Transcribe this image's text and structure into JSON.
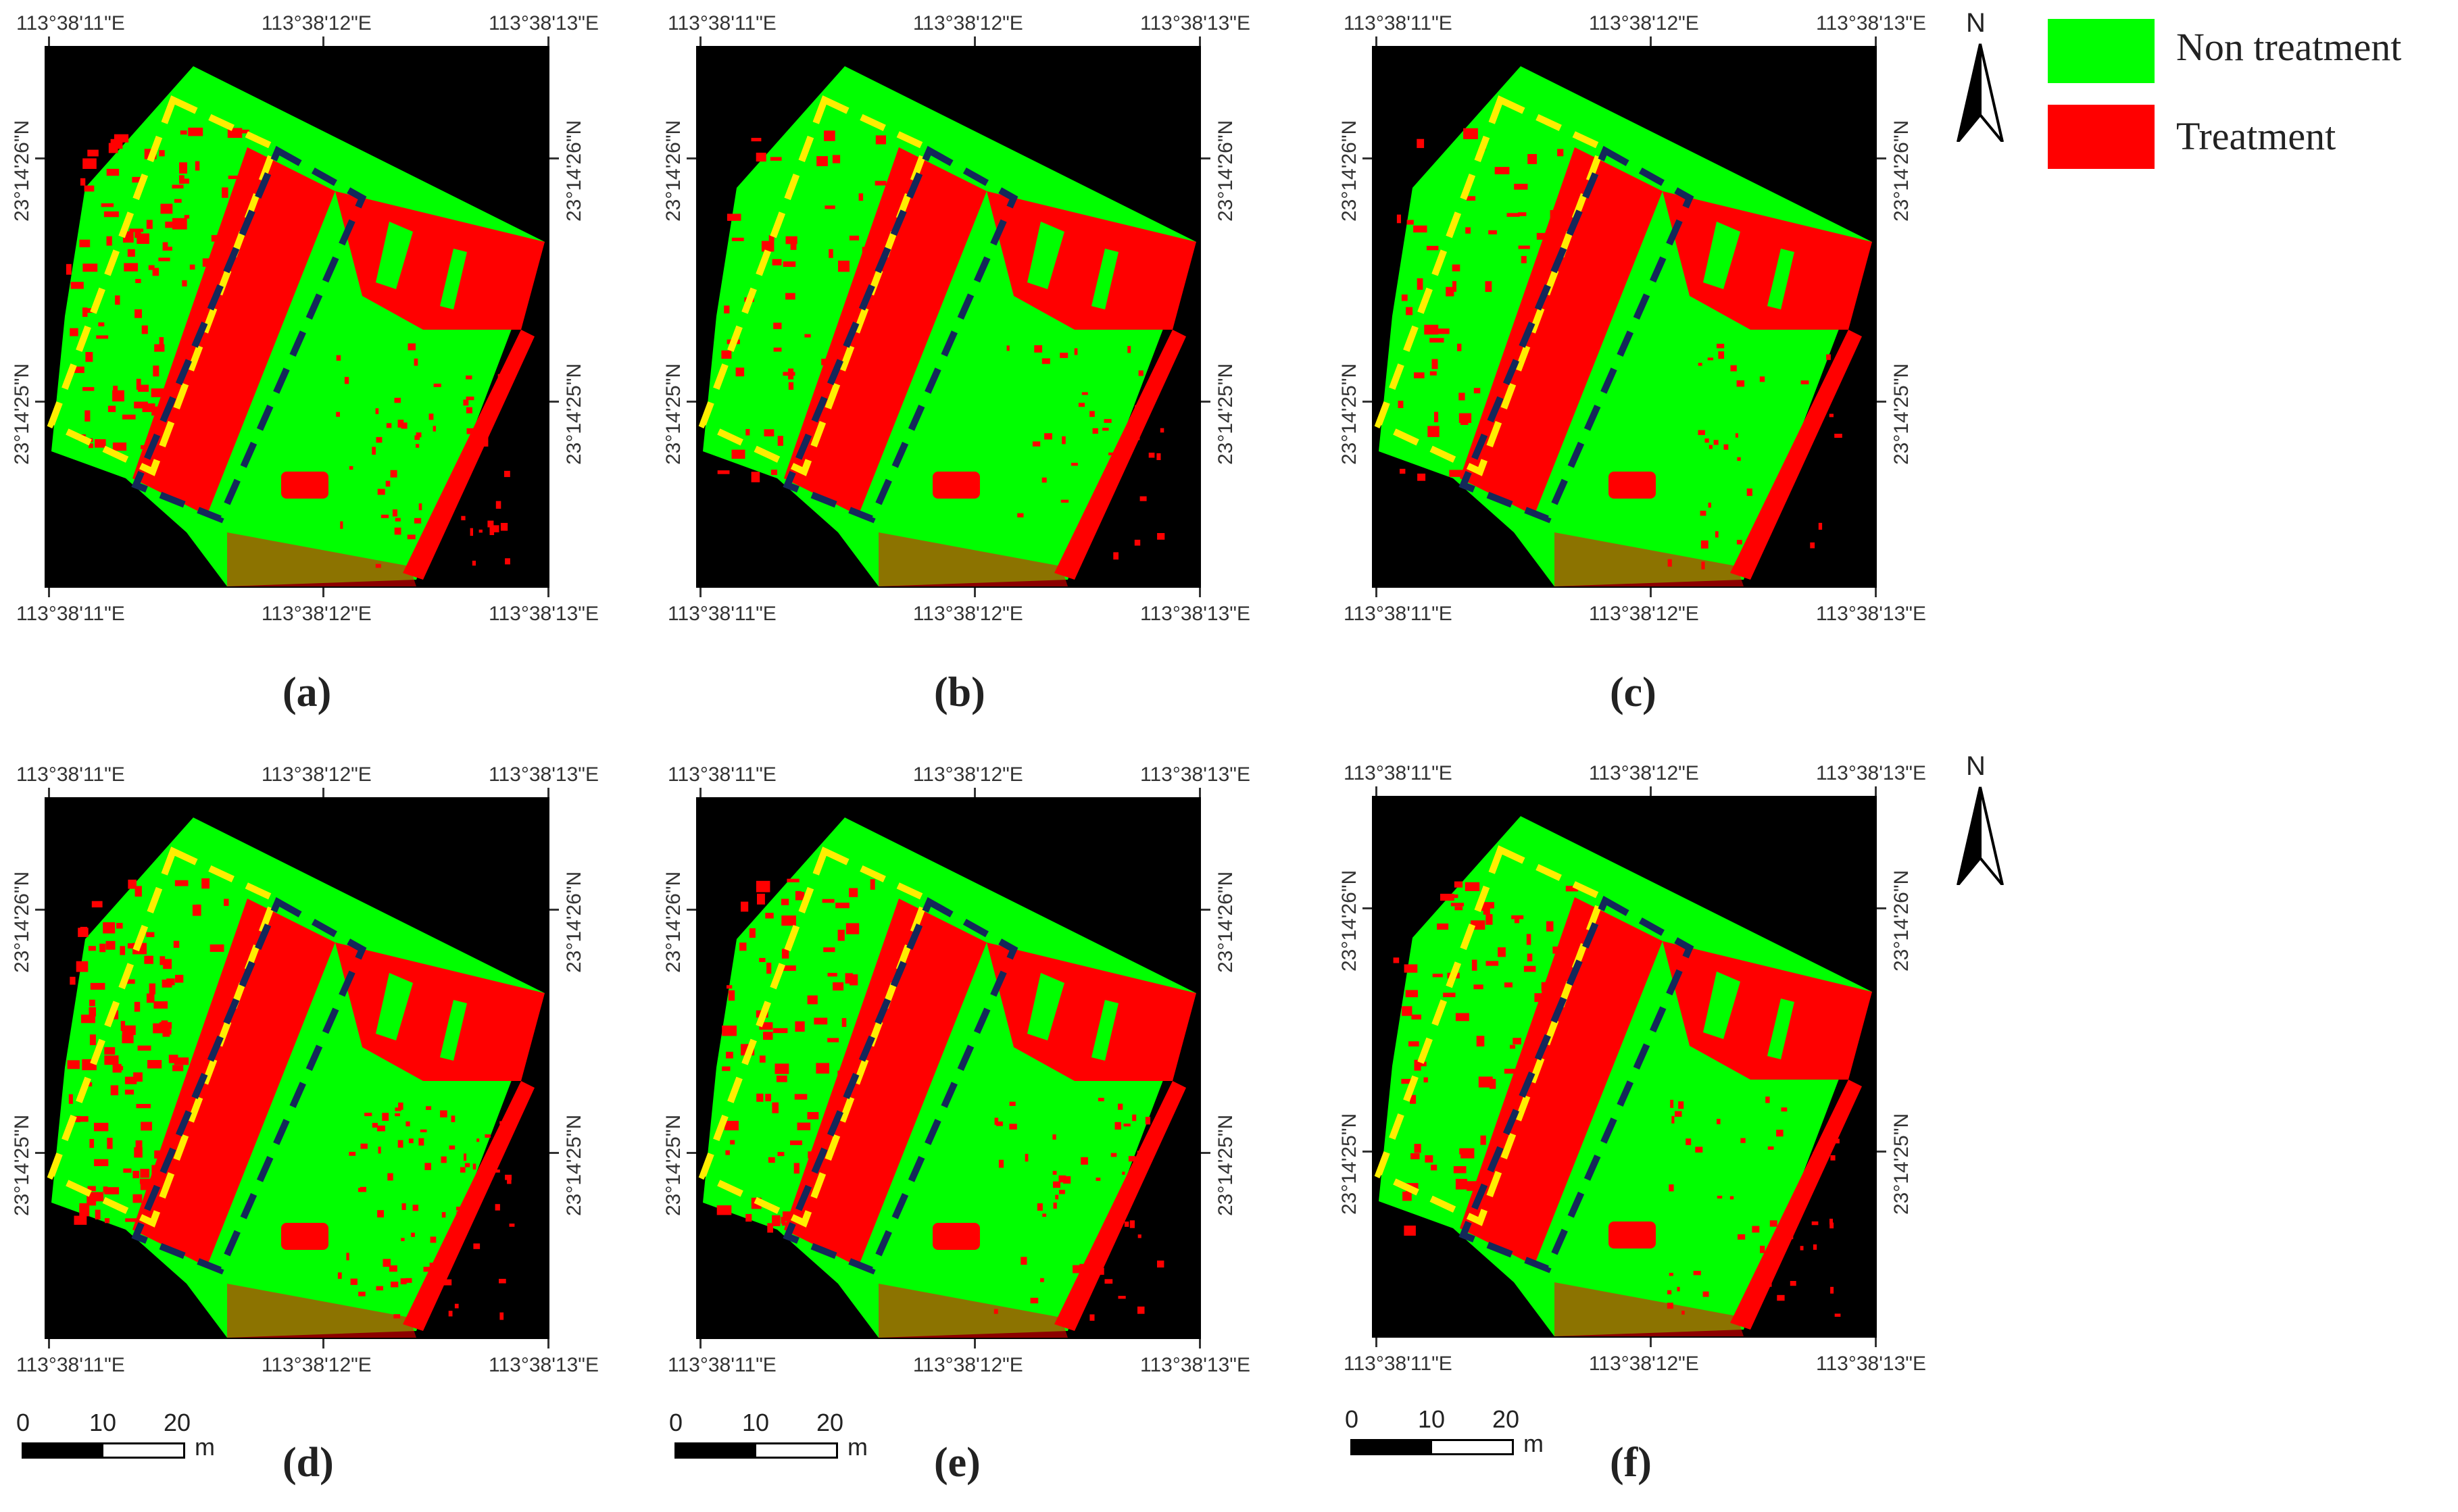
{
  "colors": {
    "non_treatment": "#00ff00",
    "treatment": "#ff0000",
    "background": "#000000",
    "plot1_outline": "#ffee00",
    "plot2_outline": "#14285a"
  },
  "coords": {
    "lon_left": "113°38'11\"E",
    "lon_mid": "113°38'12\"E",
    "lon_right": "113°38'13\"E",
    "lat_top": "23°14'26\"N",
    "lat_bottom": "23°14'25\"N"
  },
  "panels": [
    {
      "caption": "(a)"
    },
    {
      "caption": "(b)"
    },
    {
      "caption": "(c)"
    },
    {
      "caption": "(d)"
    },
    {
      "caption": "(e)"
    },
    {
      "caption": "(f)"
    }
  ],
  "legend": {
    "items": [
      {
        "label": "Non treatment",
        "color": "#00ff00"
      },
      {
        "label": "Treatment",
        "color": "#ff0000"
      }
    ]
  },
  "north_arrow": {
    "label": "N",
    "icon": "north-arrow-icon"
  },
  "scale_bar": {
    "ticks": [
      "0",
      "10",
      "20"
    ],
    "unit": "m"
  }
}
